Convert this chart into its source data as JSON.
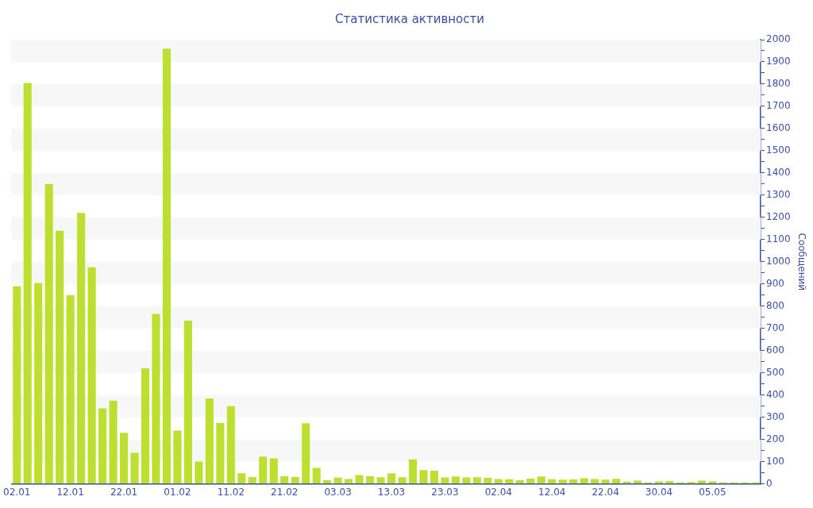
{
  "chart_data": {
    "type": "bar",
    "title": "Статистика активности",
    "ylabel": "Сообщений",
    "categories": [
      "02.01",
      null,
      null,
      null,
      null,
      "12.01",
      null,
      null,
      null,
      null,
      "22.01",
      null,
      null,
      null,
      null,
      "01.02",
      null,
      null,
      null,
      null,
      "11.02",
      null,
      null,
      null,
      null,
      "21.02",
      null,
      null,
      null,
      null,
      "03.03",
      null,
      null,
      null,
      null,
      "13.03",
      null,
      null,
      null,
      null,
      "23.03",
      null,
      null,
      null,
      null,
      "02.04",
      null,
      null,
      null,
      null,
      "12.04",
      null,
      null,
      null,
      null,
      "22.04",
      null,
      null,
      null,
      null,
      "30.04",
      null,
      null,
      null,
      null,
      "05.05",
      null,
      null,
      null,
      null
    ],
    "values": [
      890,
      1805,
      905,
      1350,
      1140,
      850,
      1220,
      975,
      340,
      375,
      230,
      140,
      520,
      765,
      1960,
      240,
      735,
      100,
      385,
      275,
      350,
      48,
      31,
      123,
      115,
      34,
      31,
      273,
      72,
      16,
      28,
      22,
      40,
      34,
      30,
      48,
      30,
      110,
      62,
      59,
      29,
      33,
      29,
      30,
      27,
      22,
      21,
      16,
      24,
      33,
      21,
      19,
      20,
      25,
      22,
      19,
      23,
      10,
      15,
      7,
      11,
      13,
      7,
      8,
      15,
      11,
      7,
      7,
      7,
      7
    ],
    "color": "#bde030",
    "ylim": [
      0,
      2000
    ],
    "yticks": [
      0,
      {
        "value": 50,
        "label": null
      },
      100,
      {
        "value": 150,
        "label": null
      },
      200,
      {
        "value": 250,
        "label": null
      },
      300,
      {
        "value": 350,
        "label": null
      },
      400,
      {
        "value": 450,
        "label": null
      },
      500,
      {
        "value": 550,
        "label": null
      },
      600,
      {
        "value": 650,
        "label": null
      },
      700,
      {
        "value": 750,
        "label": null
      },
      800,
      {
        "value": 850,
        "label": null
      },
      900,
      {
        "value": 950,
        "label": null
      },
      1000,
      {
        "value": 1050,
        "label": null
      },
      1100,
      {
        "value": 1150,
        "label": null
      },
      1200,
      {
        "value": 1250,
        "label": null
      },
      1300,
      {
        "value": 1350,
        "label": null
      },
      1400,
      {
        "value": 1450,
        "label": null
      },
      1500,
      {
        "value": 1550,
        "label": null
      },
      1600,
      {
        "value": 1650,
        "label": null
      },
      1700,
      {
        "value": 1750,
        "label": null
      },
      1800,
      {
        "value": 1850,
        "label": null
      },
      1900,
      {
        "value": 1950,
        "label": null
      },
      2000
    ],
    "bands": [
      {
        "axis": "y",
        "from": 100,
        "to": 200,
        "color": "#f7f7f7"
      },
      {
        "axis": "y",
        "from": 300,
        "to": 400,
        "color": "#f7f7f7"
      },
      {
        "axis": "y",
        "from": 500,
        "to": 600,
        "color": "#f7f7f7"
      },
      {
        "axis": "y",
        "from": 700,
        "to": 800,
        "color": "#f7f7f7"
      },
      {
        "axis": "y",
        "from": 900,
        "to": 1000,
        "color": "#f7f7f7"
      },
      {
        "axis": "y",
        "from": 1100,
        "to": 1200,
        "color": "#f7f7f7"
      },
      {
        "axis": "y",
        "from": 1300,
        "to": 1400,
        "color": "#f7f7f7"
      },
      {
        "axis": "y",
        "from": 1500,
        "to": 1600,
        "color": "#f7f7f7"
      },
      {
        "axis": "y",
        "from": 1700,
        "to": 1800,
        "color": "#f7f7f7"
      },
      {
        "axis": "y",
        "from": 1900,
        "to": 2000,
        "color": "#f7f7f7"
      }
    ],
    "legend": false
  }
}
